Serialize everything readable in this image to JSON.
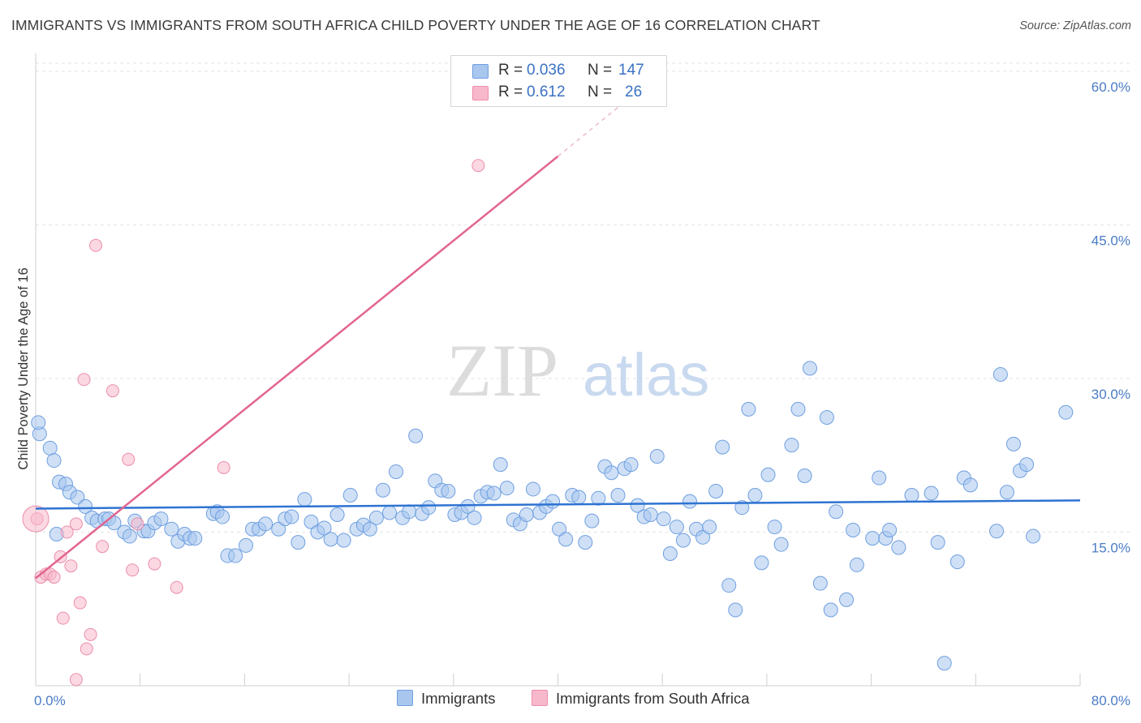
{
  "title": "IMMIGRANTS VS IMMIGRANTS FROM SOUTH AFRICA CHILD POVERTY UNDER THE AGE OF 16 CORRELATION CHART",
  "source": "Source: ZipAtlas.com",
  "watermark": {
    "zip": "ZIP",
    "atlas": "atlas"
  },
  "colors": {
    "blue_fill": "#a8c6ee",
    "blue_stroke": "#6f9fe0",
    "blue_line": "#2e73d2",
    "pink_fill": "#f7b8cb",
    "pink_stroke": "#ec8eab",
    "pink_line": "#e26590",
    "tick_text": "#4a7cc7"
  },
  "legend": {
    "rows": [
      {
        "r_label": "R =",
        "r_value": "0.036",
        "n_label": "N =",
        "n_value": "147",
        "color": "#a8c6ee"
      },
      {
        "r_label": "R =",
        "r_value": "0.612",
        "n_label": "N =",
        "n_value": "26",
        "color": "#f7b8cb"
      }
    ]
  },
  "bottom_legend": [
    {
      "label": "Immigrants",
      "color": "#a8c6ee"
    },
    {
      "label": "Immigrants from South Africa",
      "color": "#f7b8cb"
    }
  ],
  "chart_data": {
    "type": "scatter",
    "title": "IMMIGRANTS VS IMMIGRANTS FROM SOUTH AFRICA CHILD POVERTY UNDER THE AGE OF 16 CORRELATION CHART",
    "xlabel": "",
    "ylabel": "Child Poverty Under the Age of 16",
    "xlim": [
      0,
      80
    ],
    "ylim": [
      0,
      60
    ],
    "x_tick_labels": [
      "0.0%",
      "80.0%"
    ],
    "y_tick_values": [
      15,
      30,
      45,
      60
    ],
    "y_tick_labels": [
      "15.0%",
      "30.0%",
      "45.0%",
      "60.0%"
    ],
    "grid": true,
    "series": [
      {
        "name": "Immigrants",
        "trend": {
          "x": [
            0,
            80
          ],
          "y": [
            17.3,
            18.1
          ]
        },
        "points": [
          [
            0.3,
            24.6
          ],
          [
            1.1,
            23.2
          ],
          [
            1.4,
            22.0
          ],
          [
            1.8,
            19.9
          ],
          [
            2.3,
            19.7
          ],
          [
            2.6,
            18.9
          ],
          [
            3.2,
            18.4
          ],
          [
            3.8,
            17.5
          ],
          [
            4.3,
            16.4
          ],
          [
            4.7,
            16.1
          ],
          [
            5.3,
            16.3
          ],
          [
            5.6,
            16.3
          ],
          [
            1.6,
            14.8
          ],
          [
            0.2,
            25.7
          ],
          [
            6.0,
            15.9
          ],
          [
            6.8,
            15.0
          ],
          [
            7.2,
            14.6
          ],
          [
            7.6,
            16.1
          ],
          [
            8.3,
            15.1
          ],
          [
            8.6,
            15.1
          ],
          [
            9.1,
            15.9
          ],
          [
            9.6,
            16.3
          ],
          [
            10.4,
            15.3
          ],
          [
            10.9,
            14.1
          ],
          [
            11.4,
            14.8
          ],
          [
            11.8,
            14.4
          ],
          [
            12.2,
            14.4
          ],
          [
            13.6,
            16.8
          ],
          [
            13.9,
            17.0
          ],
          [
            14.3,
            16.5
          ],
          [
            14.7,
            12.7
          ],
          [
            15.3,
            12.7
          ],
          [
            16.1,
            13.7
          ],
          [
            16.6,
            15.3
          ],
          [
            17.1,
            15.3
          ],
          [
            17.6,
            15.8
          ],
          [
            18.6,
            15.3
          ],
          [
            19.1,
            16.3
          ],
          [
            19.6,
            16.5
          ],
          [
            20.1,
            14.0
          ],
          [
            20.6,
            18.2
          ],
          [
            21.1,
            16.0
          ],
          [
            21.6,
            15.0
          ],
          [
            22.1,
            15.4
          ],
          [
            22.6,
            14.3
          ],
          [
            23.1,
            16.7
          ],
          [
            23.6,
            14.2
          ],
          [
            24.1,
            18.6
          ],
          [
            24.6,
            15.3
          ],
          [
            25.1,
            15.7
          ],
          [
            25.6,
            15.3
          ],
          [
            26.1,
            16.4
          ],
          [
            26.6,
            19.1
          ],
          [
            27.1,
            16.9
          ],
          [
            27.6,
            20.9
          ],
          [
            28.1,
            16.4
          ],
          [
            28.6,
            17.0
          ],
          [
            29.1,
            24.4
          ],
          [
            29.6,
            16.8
          ],
          [
            30.1,
            17.4
          ],
          [
            30.6,
            20.0
          ],
          [
            31.1,
            19.1
          ],
          [
            31.6,
            19.0
          ],
          [
            32.1,
            16.7
          ],
          [
            32.6,
            16.9
          ],
          [
            33.1,
            17.5
          ],
          [
            33.6,
            16.4
          ],
          [
            34.1,
            18.5
          ],
          [
            34.6,
            18.9
          ],
          [
            35.1,
            18.8
          ],
          [
            35.6,
            21.6
          ],
          [
            36.1,
            19.3
          ],
          [
            36.6,
            16.2
          ],
          [
            37.1,
            15.8
          ],
          [
            37.6,
            16.7
          ],
          [
            38.1,
            19.2
          ],
          [
            38.6,
            16.9
          ],
          [
            39.1,
            17.5
          ],
          [
            39.6,
            18.0
          ],
          [
            40.1,
            15.3
          ],
          [
            40.6,
            14.3
          ],
          [
            41.1,
            18.6
          ],
          [
            41.6,
            18.4
          ],
          [
            42.1,
            14.0
          ],
          [
            42.6,
            16.1
          ],
          [
            43.1,
            18.3
          ],
          [
            43.6,
            21.4
          ],
          [
            44.1,
            20.8
          ],
          [
            44.6,
            18.6
          ],
          [
            45.1,
            21.2
          ],
          [
            45.6,
            21.6
          ],
          [
            46.1,
            17.6
          ],
          [
            46.6,
            16.5
          ],
          [
            47.1,
            16.7
          ],
          [
            47.6,
            22.4
          ],
          [
            48.1,
            16.3
          ],
          [
            48.6,
            12.9
          ],
          [
            49.1,
            15.5
          ],
          [
            49.6,
            14.2
          ],
          [
            50.1,
            18.0
          ],
          [
            50.6,
            15.3
          ],
          [
            51.1,
            14.5
          ],
          [
            51.6,
            15.5
          ],
          [
            52.1,
            19.0
          ],
          [
            52.6,
            23.3
          ],
          [
            53.1,
            9.8
          ],
          [
            53.6,
            7.4
          ],
          [
            54.1,
            17.4
          ],
          [
            54.6,
            27.0
          ],
          [
            55.1,
            18.6
          ],
          [
            55.6,
            12.0
          ],
          [
            56.1,
            20.6
          ],
          [
            56.6,
            15.5
          ],
          [
            57.1,
            13.8
          ],
          [
            57.9,
            23.5
          ],
          [
            58.4,
            27.0
          ],
          [
            58.9,
            20.5
          ],
          [
            59.3,
            31.0
          ],
          [
            60.1,
            10.0
          ],
          [
            60.6,
            26.2
          ],
          [
            60.9,
            7.4
          ],
          [
            61.3,
            17.0
          ],
          [
            62.1,
            8.4
          ],
          [
            62.6,
            15.2
          ],
          [
            62.9,
            11.8
          ],
          [
            64.1,
            14.4
          ],
          [
            64.6,
            20.3
          ],
          [
            65.1,
            14.4
          ],
          [
            65.4,
            15.2
          ],
          [
            66.1,
            13.5
          ],
          [
            67.1,
            18.6
          ],
          [
            68.6,
            18.8
          ],
          [
            69.1,
            14.0
          ],
          [
            69.6,
            2.2
          ],
          [
            70.6,
            12.1
          ],
          [
            71.1,
            20.3
          ],
          [
            71.6,
            19.6
          ],
          [
            73.6,
            15.1
          ],
          [
            73.9,
            30.4
          ],
          [
            74.4,
            18.9
          ],
          [
            74.9,
            23.6
          ],
          [
            75.4,
            21.0
          ],
          [
            75.9,
            21.6
          ],
          [
            76.4,
            14.6
          ],
          [
            78.9,
            26.7
          ]
        ]
      },
      {
        "name": "Immigrants from South Africa",
        "trend": {
          "x": [
            0,
            40
          ],
          "y": [
            10.5,
            51.7
          ]
        },
        "trend_extension": {
          "x": [
            40,
            45
          ],
          "y": [
            51.7,
            56.9
          ]
        },
        "points": [
          [
            0.1,
            16.3
          ],
          [
            0.4,
            10.6
          ],
          [
            0.8,
            10.9
          ],
          [
            1.1,
            10.9
          ],
          [
            1.4,
            10.6
          ],
          [
            1.9,
            12.6
          ],
          [
            2.4,
            15.0
          ],
          [
            2.7,
            11.7
          ],
          [
            3.1,
            15.8
          ],
          [
            3.4,
            8.1
          ],
          [
            3.7,
            29.9
          ],
          [
            3.9,
            3.6
          ],
          [
            4.2,
            5.0
          ],
          [
            2.1,
            6.6
          ],
          [
            3.1,
            0.6
          ],
          [
            4.6,
            43.0
          ],
          [
            5.1,
            13.6
          ],
          [
            5.9,
            28.8
          ],
          [
            7.1,
            22.1
          ],
          [
            7.4,
            11.3
          ],
          [
            7.8,
            15.8
          ],
          [
            9.1,
            11.9
          ],
          [
            10.8,
            9.6
          ],
          [
            14.4,
            21.3
          ],
          [
            33.9,
            50.8
          ],
          [
            0.0,
            16.3
          ]
        ]
      }
    ]
  }
}
